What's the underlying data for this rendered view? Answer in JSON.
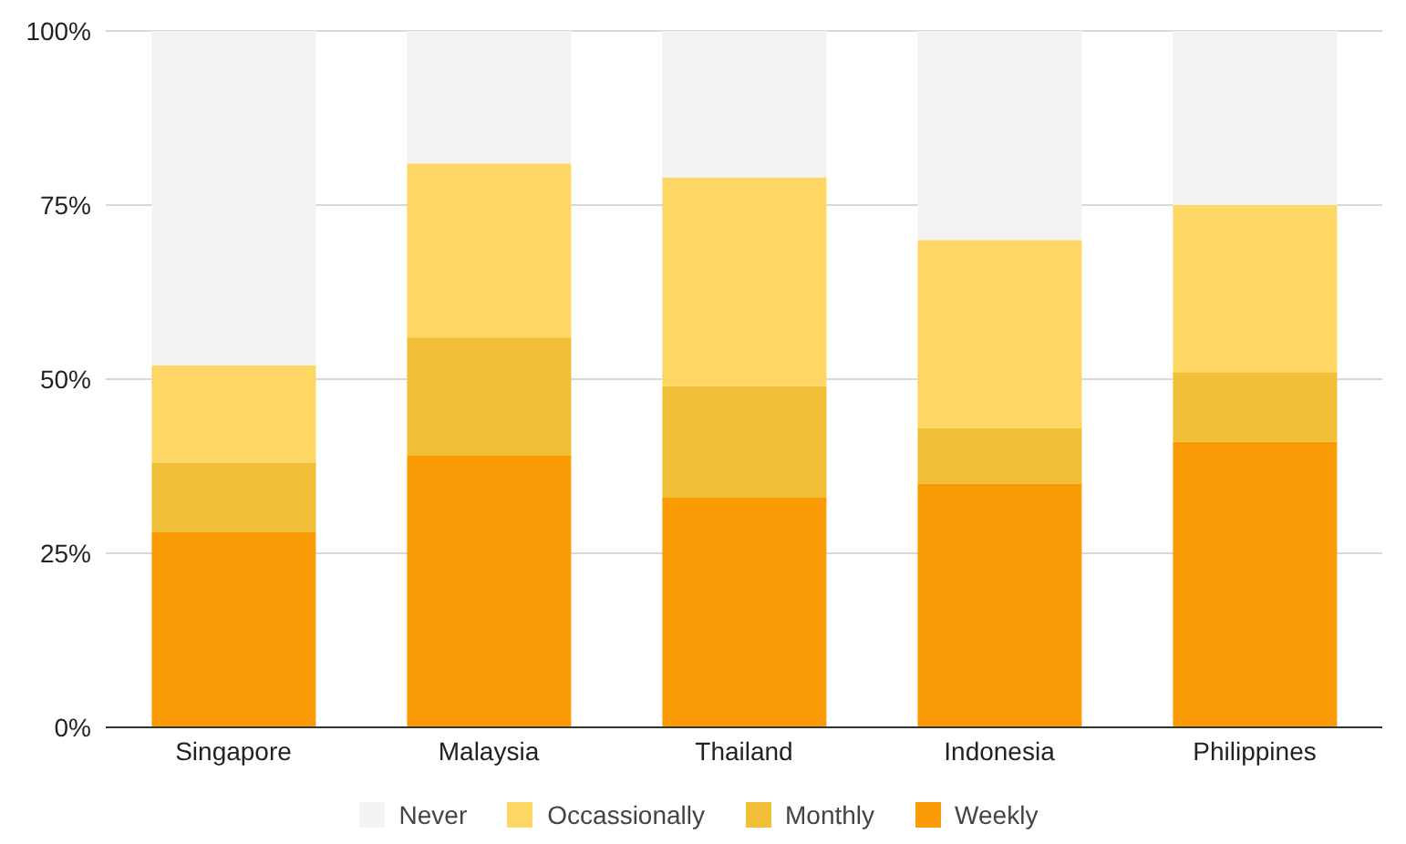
{
  "chart_data": {
    "type": "bar",
    "stacked": true,
    "categories": [
      "Singapore",
      "Malaysia",
      "Thailand",
      "Indonesia",
      "Philippines"
    ],
    "series": [
      {
        "name": "Weekly",
        "color": "#fa9a05",
        "values": [
          28,
          39,
          33,
          35,
          41
        ]
      },
      {
        "name": "Monthly",
        "color": "#f0bf36",
        "values": [
          10,
          17,
          16,
          8,
          10
        ]
      },
      {
        "name": "Occassionally",
        "color": "#fdd663",
        "values": [
          14,
          25,
          30,
          27,
          24
        ]
      },
      {
        "name": "Never",
        "color": "#f3f3f3",
        "values": [
          48,
          19,
          21,
          30,
          25
        ]
      }
    ],
    "ylim": [
      0,
      100
    ],
    "yticks": [
      {
        "value": 0,
        "label": "0%"
      },
      {
        "value": 25,
        "label": "25%"
      },
      {
        "value": 50,
        "label": "50%"
      },
      {
        "value": 75,
        "label": "75%"
      },
      {
        "value": 100,
        "label": "100%"
      }
    ],
    "grid": "y",
    "legend": "bottom"
  }
}
